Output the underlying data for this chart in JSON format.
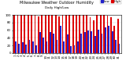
{
  "title": "Milwaukee Weather Outdoor Humidity",
  "subtitle": "Daily High/Low",
  "bar_width": 0.42,
  "high_color": "#dd0000",
  "low_color": "#2222cc",
  "background_color": "#ffffff",
  "ylim": [
    0,
    100
  ],
  "legend_high": "High",
  "legend_low": "Low",
  "highs": [
    100,
    100,
    100,
    100,
    100,
    100,
    100,
    97,
    100,
    100,
    100,
    100,
    100,
    96,
    100,
    100,
    100,
    100,
    100,
    100,
    100,
    100,
    95,
    85,
    100,
    100,
    100,
    98,
    95,
    72,
    90
  ],
  "lows": [
    30,
    25,
    28,
    22,
    35,
    30,
    20,
    55,
    40,
    30,
    55,
    52,
    35,
    72,
    30,
    50,
    18,
    20,
    30,
    52,
    55,
    60,
    58,
    45,
    62,
    52,
    68,
    72,
    58,
    35,
    25
  ],
  "yticks": [
    0,
    20,
    40,
    60,
    80,
    100
  ],
  "title_fontsize": 3.5,
  "subtitle_fontsize": 3.0,
  "tick_fontsize": 2.8,
  "legend_fontsize": 2.8
}
